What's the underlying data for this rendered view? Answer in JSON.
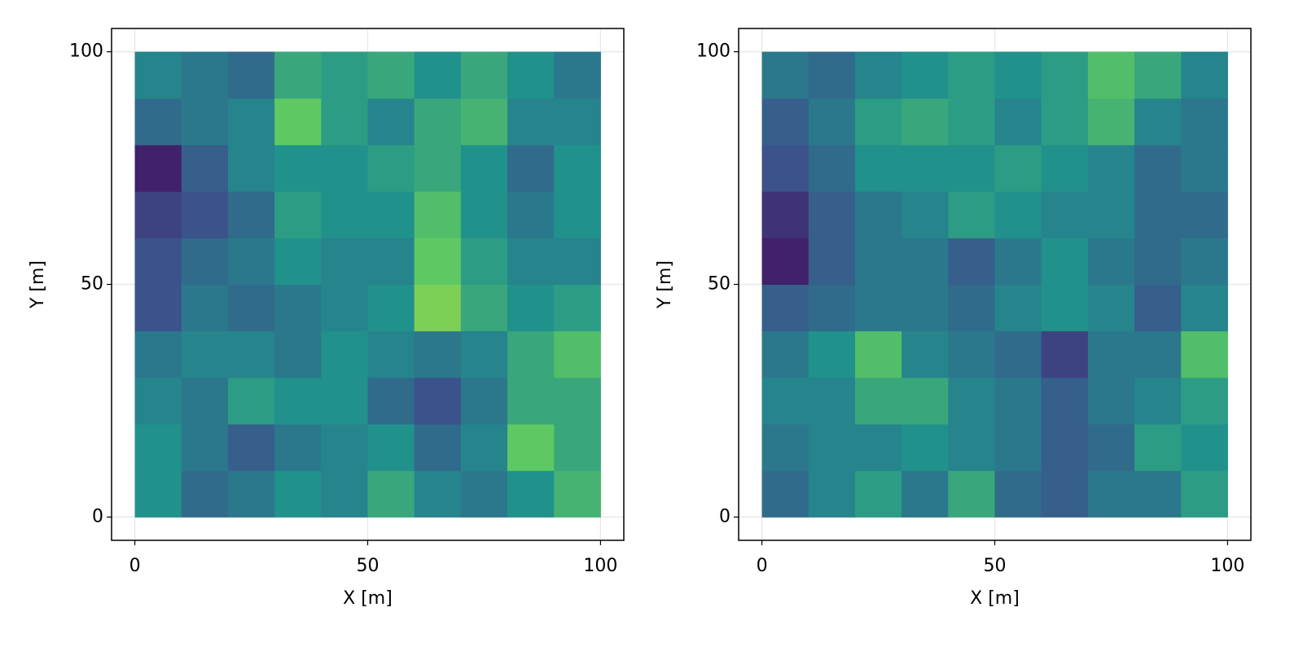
{
  "chart_data": [
    {
      "type": "heatmap",
      "xlabel": "X [m]",
      "ylabel": "Y [m]",
      "colormap": "viridis",
      "grid": true,
      "xlim": [
        -5,
        105
      ],
      "ylim": [
        -5,
        105
      ],
      "xticks": [
        0,
        50,
        100
      ],
      "yticks": [
        0,
        50,
        100
      ],
      "xbins": [
        0,
        10,
        20,
        30,
        40,
        50,
        60,
        70,
        80,
        90,
        100
      ],
      "ybins": [
        0,
        10,
        20,
        30,
        40,
        50,
        60,
        70,
        80,
        90,
        100
      ],
      "z": [
        [
          0.5,
          0.35,
          0.4,
          0.5,
          0.45,
          0.6,
          0.45,
          0.4,
          0.5,
          0.65
        ],
        [
          0.5,
          0.4,
          0.3,
          0.4,
          0.45,
          0.5,
          0.35,
          0.45,
          0.75,
          0.6
        ],
        [
          0.45,
          0.4,
          0.55,
          0.5,
          0.5,
          0.35,
          0.25,
          0.4,
          0.6,
          0.6
        ],
        [
          0.4,
          0.45,
          0.45,
          0.4,
          0.5,
          0.45,
          0.4,
          0.45,
          0.6,
          0.7
        ],
        [
          0.25,
          0.4,
          0.35,
          0.4,
          0.45,
          0.5,
          0.8,
          0.6,
          0.5,
          0.55
        ],
        [
          0.25,
          0.35,
          0.4,
          0.5,
          0.45,
          0.45,
          0.75,
          0.55,
          0.45,
          0.45
        ],
        [
          0.2,
          0.25,
          0.35,
          0.55,
          0.5,
          0.5,
          0.7,
          0.5,
          0.4,
          0.5
        ],
        [
          0.1,
          0.3,
          0.45,
          0.5,
          0.5,
          0.55,
          0.6,
          0.5,
          0.35,
          0.5
        ],
        [
          0.35,
          0.4,
          0.45,
          0.75,
          0.55,
          0.45,
          0.6,
          0.65,
          0.45,
          0.45
        ],
        [
          0.45,
          0.4,
          0.35,
          0.6,
          0.55,
          0.6,
          0.5,
          0.6,
          0.5,
          0.4
        ]
      ]
    },
    {
      "type": "heatmap",
      "xlabel": "X [m]",
      "ylabel": "Y [m]",
      "colormap": "viridis",
      "grid": true,
      "xlim": [
        -5,
        105
      ],
      "ylim": [
        -5,
        105
      ],
      "xticks": [
        0,
        50,
        100
      ],
      "yticks": [
        0,
        50,
        100
      ],
      "xbins": [
        0,
        10,
        20,
        30,
        40,
        50,
        60,
        70,
        80,
        90,
        100
      ],
      "ybins": [
        0,
        10,
        20,
        30,
        40,
        50,
        60,
        70,
        80,
        90,
        100
      ],
      "z": [
        [
          0.35,
          0.45,
          0.55,
          0.4,
          0.6,
          0.35,
          0.3,
          0.4,
          0.4,
          0.55
        ],
        [
          0.4,
          0.45,
          0.45,
          0.5,
          0.45,
          0.4,
          0.3,
          0.35,
          0.55,
          0.5
        ],
        [
          0.45,
          0.45,
          0.6,
          0.6,
          0.45,
          0.4,
          0.3,
          0.4,
          0.45,
          0.55
        ],
        [
          0.4,
          0.5,
          0.7,
          0.45,
          0.4,
          0.35,
          0.2,
          0.4,
          0.4,
          0.7
        ],
        [
          0.3,
          0.35,
          0.4,
          0.4,
          0.35,
          0.45,
          0.5,
          0.45,
          0.3,
          0.45
        ],
        [
          0.1,
          0.3,
          0.4,
          0.4,
          0.3,
          0.4,
          0.5,
          0.4,
          0.35,
          0.4
        ],
        [
          0.15,
          0.3,
          0.4,
          0.45,
          0.55,
          0.5,
          0.45,
          0.45,
          0.35,
          0.35
        ],
        [
          0.25,
          0.35,
          0.5,
          0.5,
          0.5,
          0.55,
          0.5,
          0.45,
          0.35,
          0.4
        ],
        [
          0.3,
          0.4,
          0.55,
          0.6,
          0.55,
          0.45,
          0.55,
          0.65,
          0.45,
          0.4
        ],
        [
          0.4,
          0.35,
          0.45,
          0.5,
          0.55,
          0.5,
          0.55,
          0.7,
          0.6,
          0.45
        ]
      ]
    }
  ]
}
